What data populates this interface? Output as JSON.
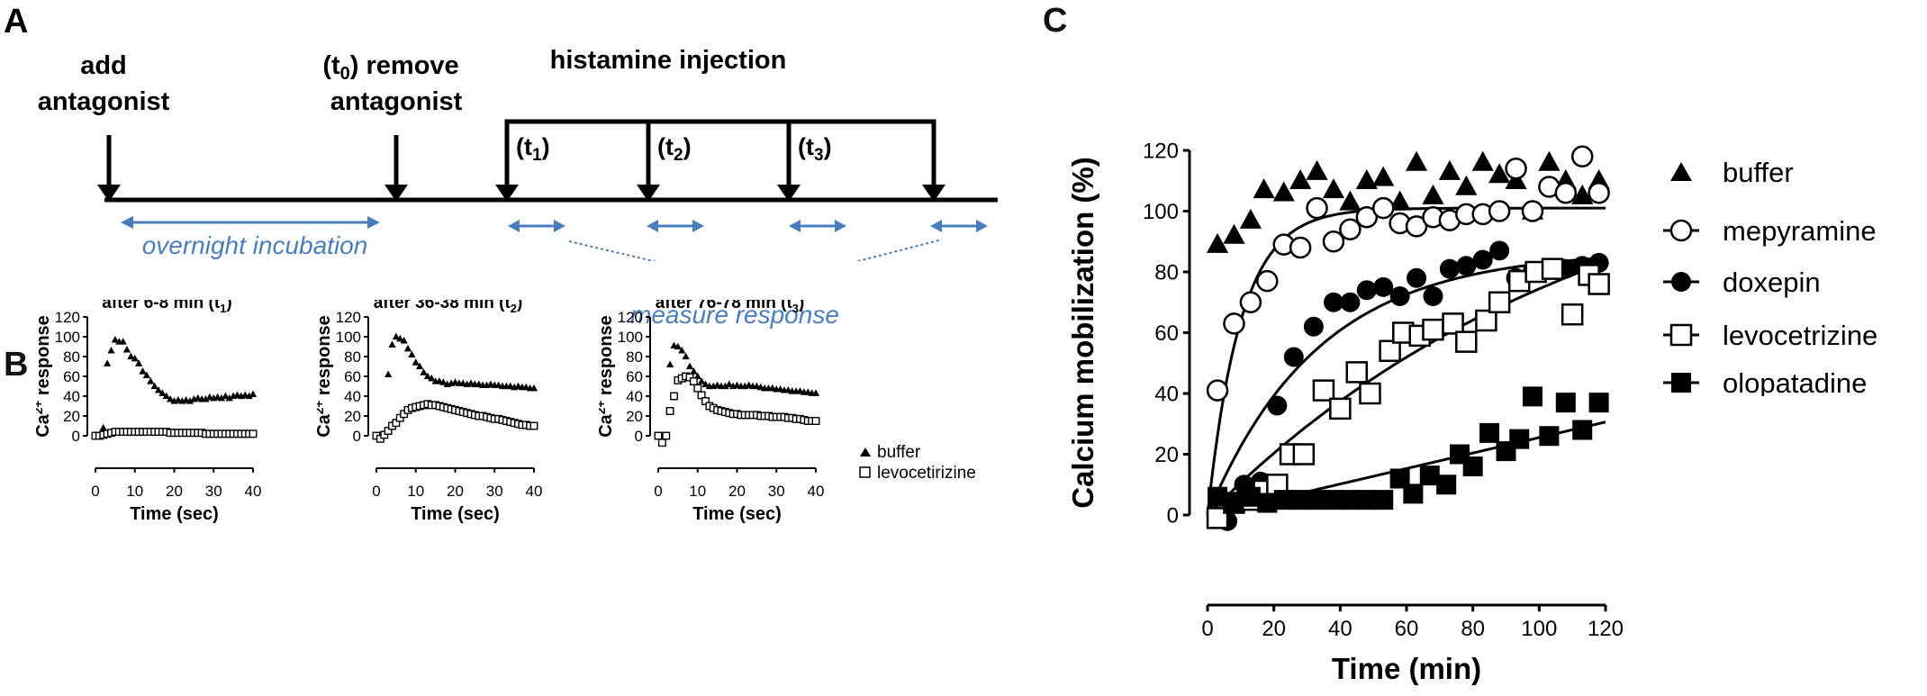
{
  "panel_a": {
    "label": "A",
    "step_add": [
      "add",
      "antagonist"
    ],
    "step_remove": [
      "remove",
      "antagonist"
    ],
    "step_remove_prefix": "(t",
    "step_remove_sub": "0",
    "step_remove_suffix": ")",
    "injection_label": "histamine injection",
    "timepoints": [
      {
        "prefix": "(t",
        "sub": "1",
        "suffix": ")"
      },
      {
        "prefix": "(t",
        "sub": "2",
        "suffix": ")"
      },
      {
        "prefix": "(t",
        "sub": "3",
        "suffix": ")"
      }
    ],
    "incubation_label": "overnight incubation",
    "measure_label": "measure response",
    "accent_color": "#4a7ebb"
  },
  "chart_data": [
    {
      "id": "B1",
      "panel_label": "B",
      "type": "scatter",
      "title": {
        "text": "after 6-8 min (t",
        "sub": "1",
        "suffix": ")"
      },
      "xlabel": "Time (sec)",
      "ylabel": {
        "pre": "Ca",
        "sup": "2+",
        "post": " response"
      },
      "xlim": [
        0,
        40
      ],
      "ylim": [
        0,
        120
      ],
      "xticks": [
        0,
        10,
        20,
        30,
        40
      ],
      "yticks": [
        0,
        20,
        40,
        60,
        80,
        100,
        120
      ],
      "series": [
        {
          "name": "buffer",
          "marker": "triangle-filled",
          "x": [
            2,
            3,
            4,
            5,
            6,
            7,
            8,
            9,
            10,
            11,
            12,
            13,
            14,
            15,
            16,
            17,
            18,
            19,
            20,
            21,
            22,
            23,
            24,
            25,
            26,
            27,
            28,
            29,
            30,
            31,
            32,
            33,
            34,
            35,
            36,
            37,
            38,
            39,
            40
          ],
          "y": [
            8,
            73,
            86,
            97,
            95,
            95,
            87,
            80,
            78,
            73,
            65,
            61,
            55,
            50,
            46,
            43,
            40,
            37,
            35,
            36,
            35,
            36,
            35,
            37,
            38,
            37,
            37,
            39,
            38,
            39,
            38,
            40,
            38,
            40,
            41,
            40,
            41,
            40,
            42
          ]
        },
        {
          "name": "levocetirizine",
          "marker": "square-open",
          "x": [
            0,
            1,
            2,
            3,
            4,
            5,
            6,
            7,
            8,
            9,
            10,
            11,
            12,
            13,
            14,
            15,
            16,
            17,
            18,
            19,
            20,
            21,
            22,
            23,
            24,
            25,
            26,
            27,
            28,
            29,
            30,
            31,
            32,
            33,
            34,
            35,
            36,
            37,
            38,
            39,
            40
          ],
          "y": [
            0,
            0,
            1,
            2,
            3,
            4,
            4,
            4,
            4,
            4,
            4,
            4,
            4,
            4,
            4,
            4,
            4,
            4,
            4,
            3,
            3,
            3,
            3,
            3,
            3,
            3,
            3,
            3,
            2,
            2,
            2,
            2,
            2,
            2,
            2,
            2,
            2,
            2,
            2,
            2,
            2
          ]
        }
      ]
    },
    {
      "id": "B2",
      "type": "scatter",
      "title": {
        "text": "after 36-38 min (t",
        "sub": "2",
        "suffix": ")"
      },
      "xlabel": "Time (sec)",
      "ylabel": {
        "pre": "Ca",
        "sup": "2+",
        "post": " response"
      },
      "xlim": [
        0,
        40
      ],
      "ylim": [
        0,
        120
      ],
      "xticks": [
        0,
        10,
        20,
        30,
        40
      ],
      "yticks": [
        0,
        20,
        40,
        60,
        80,
        100,
        120
      ],
      "series": [
        {
          "name": "buffer",
          "marker": "triangle-filled",
          "x": [
            3,
            4,
            5,
            6,
            7,
            8,
            9,
            10,
            11,
            12,
            13,
            14,
            15,
            16,
            17,
            18,
            19,
            20,
            21,
            22,
            23,
            24,
            25,
            26,
            27,
            28,
            29,
            30,
            31,
            32,
            33,
            34,
            35,
            36,
            37,
            38,
            39,
            40
          ],
          "y": [
            62,
            92,
            100,
            98,
            96,
            88,
            82,
            74,
            70,
            64,
            60,
            58,
            55,
            55,
            54,
            52,
            53,
            54,
            53,
            53,
            52,
            53,
            52,
            52,
            51,
            51,
            52,
            51,
            51,
            50,
            50,
            50,
            49,
            50,
            49,
            49,
            48,
            48
          ]
        },
        {
          "name": "levocetirizine",
          "marker": "square-open",
          "x": [
            0,
            1,
            2,
            3,
            4,
            5,
            6,
            7,
            8,
            9,
            10,
            11,
            12,
            13,
            14,
            15,
            16,
            17,
            18,
            19,
            20,
            21,
            22,
            23,
            24,
            25,
            26,
            27,
            28,
            29,
            30,
            31,
            32,
            33,
            34,
            35,
            36,
            37,
            38,
            39,
            40
          ],
          "y": [
            0,
            -3,
            1,
            5,
            10,
            13,
            18,
            22,
            26,
            28,
            29,
            30,
            31,
            32,
            31,
            31,
            30,
            29,
            28,
            27,
            26,
            25,
            24,
            23,
            22,
            21,
            20,
            20,
            19,
            18,
            17,
            17,
            16,
            15,
            14,
            13,
            12,
            11,
            11,
            10,
            10
          ]
        }
      ]
    },
    {
      "id": "B3",
      "type": "scatter",
      "title": {
        "text": "after 76-78 min (t",
        "sub": "3",
        "suffix": ")"
      },
      "xlabel": "Time (sec)",
      "ylabel": {
        "pre": "Ca",
        "sup": "2+",
        "post": " response"
      },
      "xlim": [
        0,
        40
      ],
      "ylim": [
        0,
        120
      ],
      "xticks": [
        0,
        10,
        20,
        30,
        40
      ],
      "yticks": [
        0,
        20,
        40,
        60,
        80,
        100,
        120
      ],
      "legend": {
        "position": "right",
        "entries": [
          "buffer",
          "levocetirizine"
        ]
      },
      "series": [
        {
          "name": "buffer",
          "marker": "triangle-filled",
          "x": [
            3,
            4,
            5,
            6,
            7,
            8,
            9,
            10,
            11,
            12,
            13,
            14,
            15,
            16,
            17,
            18,
            19,
            20,
            21,
            22,
            23,
            24,
            25,
            26,
            27,
            28,
            29,
            30,
            31,
            32,
            33,
            34,
            35,
            36,
            37,
            38,
            39,
            40
          ],
          "y": [
            72,
            91,
            90,
            86,
            80,
            70,
            65,
            60,
            55,
            52,
            50,
            50,
            51,
            50,
            50,
            52,
            50,
            51,
            50,
            50,
            51,
            50,
            50,
            49,
            48,
            48,
            48,
            47,
            47,
            46,
            46,
            45,
            45,
            45,
            44,
            44,
            43,
            43
          ]
        },
        {
          "name": "levocetirizine",
          "marker": "square-open",
          "x": [
            0,
            1,
            2,
            3,
            4,
            5,
            6,
            7,
            8,
            9,
            10,
            11,
            12,
            13,
            14,
            15,
            16,
            17,
            18,
            19,
            20,
            21,
            22,
            23,
            24,
            25,
            26,
            27,
            28,
            29,
            30,
            31,
            32,
            33,
            34,
            35,
            36,
            37,
            38,
            39,
            40
          ],
          "y": [
            0,
            -7,
            0,
            25,
            40,
            56,
            58,
            60,
            59,
            55,
            48,
            41,
            35,
            30,
            28,
            26,
            25,
            24,
            23,
            22,
            22,
            21,
            21,
            21,
            21,
            21,
            20,
            20,
            20,
            19,
            19,
            19,
            19,
            18,
            18,
            17,
            17,
            16,
            15,
            15,
            15
          ]
        }
      ]
    },
    {
      "id": "C",
      "panel_label": "C",
      "type": "scatter",
      "xlabel": "Time (min)",
      "ylabel": "Calcium mobilization (%)",
      "xlim": [
        0,
        120
      ],
      "ylim": [
        0,
        120
      ],
      "xticks": [
        0,
        20,
        40,
        60,
        80,
        100,
        120
      ],
      "yticks": [
        0,
        20,
        40,
        60,
        80,
        100,
        120
      ],
      "legend": {
        "position": "right",
        "entries": [
          "buffer",
          "mepyramine",
          "doxepin",
          "levocetrizine",
          "olopatadine"
        ]
      },
      "series": [
        {
          "name": "buffer",
          "marker": "triangle-filled",
          "x": [
            3,
            8,
            13,
            17,
            23,
            28,
            33,
            38,
            43,
            48,
            53,
            58,
            63,
            68,
            73,
            78,
            83,
            88,
            93,
            98,
            103,
            108,
            113,
            118
          ],
          "y": [
            89,
            92,
            97,
            107,
            106,
            110,
            113,
            107,
            103,
            110,
            111,
            103,
            116,
            105,
            113,
            108,
            116,
            112,
            110,
            100,
            116,
            110,
            105,
            110
          ],
          "fit": "plateau",
          "fit_values": []
        },
        {
          "name": "mepyramine",
          "marker": "circle-open",
          "x": [
            3,
            8,
            13,
            18,
            23,
            28,
            33,
            38,
            43,
            48,
            53,
            58,
            63,
            68,
            73,
            78,
            83,
            88,
            93,
            98,
            103,
            108,
            113,
            118
          ],
          "y": [
            41,
            63,
            70,
            77,
            89,
            88,
            101,
            90,
            94,
            98,
            101,
            96,
            95,
            98,
            97,
            99,
            99,
            100,
            114,
            100,
            108,
            106,
            118,
            106
          ],
          "fit": {
            "model": "one-phase-association",
            "plateau": 101,
            "k": 0.1
          }
        },
        {
          "name": "doxepin",
          "marker": "circle-filled",
          "x": [
            6,
            11,
            16,
            21,
            26,
            32,
            38,
            43,
            48,
            53,
            58,
            63,
            68,
            73,
            78,
            83,
            88,
            93,
            98,
            103,
            108,
            113,
            118
          ],
          "y": [
            -2,
            10,
            11,
            36,
            52,
            62,
            70,
            70,
            74,
            75,
            72,
            78,
            72,
            81,
            82,
            84,
            87,
            78,
            80,
            81,
            81,
            82,
            83
          ],
          "fit": {
            "model": "one-phase-association",
            "plateau": 87,
            "k": 0.03
          }
        },
        {
          "name": "levocetrizine",
          "marker": "square-open",
          "x": [
            3,
            8,
            13,
            17,
            21,
            25,
            29,
            35,
            40,
            45,
            49,
            55,
            59,
            64,
            68,
            74,
            78,
            84,
            88,
            94,
            99,
            104,
            110,
            115,
            118
          ],
          "y": [
            -1,
            4,
            5,
            8,
            10,
            20,
            20,
            41,
            35,
            47,
            40,
            54,
            60,
            59,
            61,
            63,
            57,
            64,
            70,
            77,
            80,
            81,
            66,
            79,
            76
          ],
          "fit": {
            "model": "one-phase-association",
            "plateau": 130,
            "k": 0.0085
          }
        },
        {
          "name": "olopatadine",
          "marker": "square-filled",
          "x": [
            3,
            8,
            13,
            18,
            23,
            28,
            33,
            38,
            43,
            48,
            53,
            58,
            62,
            67,
            72,
            76,
            80,
            85,
            90,
            94,
            98,
            103,
            108,
            113,
            118
          ],
          "y": [
            6,
            4,
            6,
            4,
            5,
            5,
            5,
            5,
            5,
            5,
            5,
            12,
            7,
            13,
            10,
            20,
            16,
            27,
            21,
            25,
            39,
            26,
            37,
            28,
            37
          ],
          "fit": {
            "model": "linear",
            "slope": 0.255,
            "intercept": 0
          }
        }
      ]
    }
  ]
}
